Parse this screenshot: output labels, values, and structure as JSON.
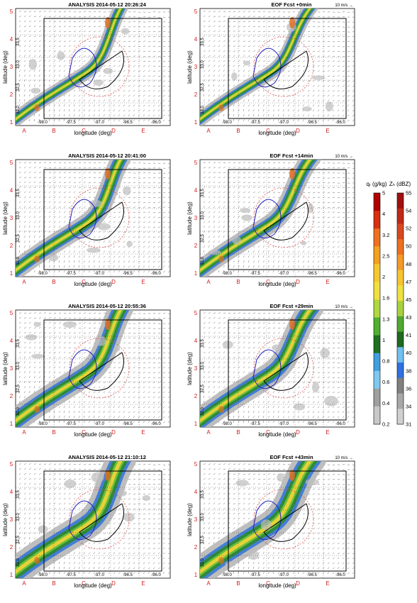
{
  "panels": [
    {
      "title": "ANALYSIS 2014-05-12 20:26:24",
      "show_scale": false
    },
    {
      "title": "EOF Fcst +0min",
      "show_scale": true
    },
    {
      "title": "ANALYSIS 2014-05-12 20:41:00",
      "show_scale": false
    },
    {
      "title": "EOF Fcst +14min",
      "show_scale": true
    },
    {
      "title": "ANALYSIS 2014-05-12 20:55:36",
      "show_scale": false
    },
    {
      "title": "EOF Fcst +29min",
      "show_scale": true
    },
    {
      "title": "ANALYSIS 2014-05-12 21:10:12",
      "show_scale": false
    },
    {
      "title": "EOF Fcst +43min",
      "show_scale": true
    }
  ],
  "vector_scale_label": "10 m/s →",
  "axes": {
    "xlabel": "longitude (deg)",
    "ylabel": "latitude (deg)",
    "lon_ticks": [
      "-98.0",
      "-97.5",
      "-97.0",
      "-96.5",
      "-96.0"
    ],
    "lat_ticks": [
      "32.0",
      "32.5",
      "33.0",
      "33.5"
    ],
    "grid_letters": [
      "A",
      "B",
      "C",
      "D",
      "E"
    ],
    "grid_numbers": [
      "1",
      "2",
      "3",
      "4",
      "5"
    ]
  },
  "colorbars": {
    "qr": {
      "label": "qᵣ (g/kg)",
      "ticks": [
        "5",
        "4",
        "3.2",
        "2.5",
        "2",
        "1.6",
        "1.3",
        "1",
        "0.8",
        "0.6",
        "0.4",
        "0.2"
      ],
      "colors": [
        "#b00000",
        "#d83010",
        "#f07020",
        "#f4a020",
        "#f6c830",
        "#f0e040",
        "#b0d840",
        "#50b030",
        "#207020",
        "#40a0e0",
        "#80c8f0",
        "#a0a0a0",
        "#c8c8c8"
      ]
    },
    "zh": {
      "label": "Zₕ (dBZ)",
      "ticks": [
        "55",
        "54",
        "52",
        "50",
        "48",
        "47",
        "45",
        "43",
        "41",
        "40",
        "38",
        "36",
        "34",
        "31"
      ],
      "colors": [
        "#a01010",
        "#c02818",
        "#d84820",
        "#ec7020",
        "#f49a28",
        "#f6c430",
        "#eee040",
        "#a8d040",
        "#50a830",
        "#206820",
        "#70c0f0",
        "#3070e0",
        "#808080",
        "#a8a8a8",
        "#d0d0d0"
      ]
    }
  },
  "chart_data": {
    "type": "heatmap",
    "panel_count": 8,
    "fields": [
      "rainwater mixing ratio qr (shaded)",
      "horizontal wind vectors",
      "contours"
    ],
    "lon_range": [
      -98.3,
      -95.8
    ],
    "lat_range": [
      31.8,
      33.8
    ]
  }
}
